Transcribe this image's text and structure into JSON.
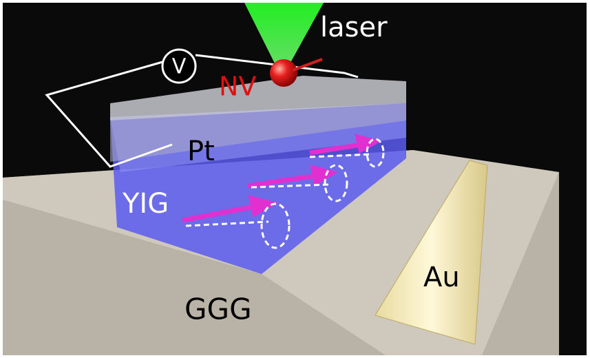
{
  "labels": {
    "laser": "laser",
    "voltmeter": "V",
    "nv": "NV",
    "pt": "Pt",
    "yig": "YIG",
    "ggg": "GGG",
    "au": "Au"
  }
}
